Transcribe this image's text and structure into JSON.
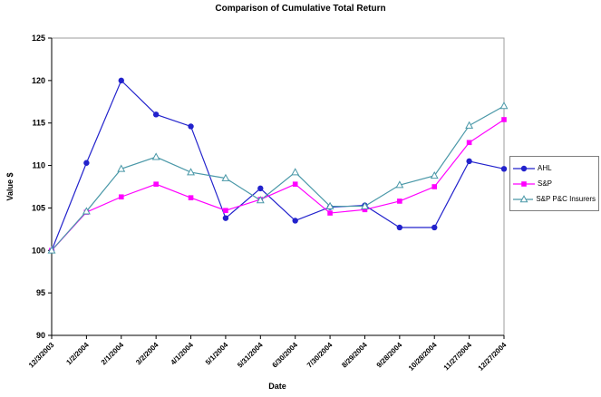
{
  "chart_data": {
    "type": "line",
    "title": "Comparison of Cumulative Total Return",
    "xlabel": "Date",
    "ylabel": "Value $",
    "ylim": [
      90,
      125
    ],
    "y_ticks": [
      90,
      95,
      100,
      105,
      110,
      115,
      120,
      125
    ],
    "grid": false,
    "legend_position": "right",
    "categories": [
      "12/3/2003",
      "1/2/2004",
      "2/1/2004",
      "3/2/2004",
      "4/1/2004",
      "5/1/2004",
      "5/31/2004",
      "6/30/2004",
      "7/30/2004",
      "8/29/2004",
      "9/28/2004",
      "10/28/2004",
      "11/27/2004",
      "12/27/2004"
    ],
    "series": [
      {
        "name": "AHL",
        "color": "#2222CC",
        "marker": "circle",
        "values": [
          100,
          110.3,
          120,
          116,
          114.6,
          103.8,
          107.3,
          103.5,
          105.1,
          105.3,
          102.7,
          102.7,
          110.5,
          109.6
        ]
      },
      {
        "name": "S&P",
        "color": "#FF00FF",
        "marker": "square",
        "values": [
          100,
          104.5,
          106.3,
          107.8,
          106.2,
          104.7,
          106,
          107.8,
          104.4,
          104.8,
          105.8,
          107.5,
          112.7,
          115.4
        ]
      },
      {
        "name": "S&P P&C Insurers",
        "color": "#4A98A8",
        "marker": "triangle-open",
        "values": [
          100,
          104.6,
          109.6,
          111,
          109.2,
          108.5,
          105.9,
          109.2,
          105.2,
          105.2,
          107.7,
          108.8,
          114.7,
          117
        ]
      }
    ],
    "axis_color": "#000000",
    "plot_border_color": "#9c9c9c"
  }
}
